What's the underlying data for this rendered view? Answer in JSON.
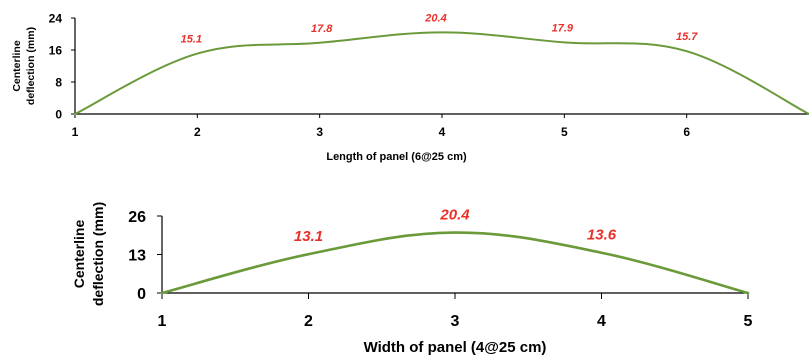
{
  "colors": {
    "series": "#6a9a3a",
    "data_label": "#e8312a",
    "axis": "#000000"
  },
  "chart_data": [
    {
      "type": "line",
      "x": [
        1,
        2,
        3,
        4,
        5,
        6,
        7
      ],
      "xticks": [
        "1",
        "2",
        "3",
        "4",
        "5",
        "6"
      ],
      "xlim": [
        1,
        7
      ],
      "ylim": [
        0,
        24
      ],
      "yticks": [
        0,
        8,
        16,
        24
      ],
      "values": [
        0,
        15.1,
        17.8,
        20.4,
        17.9,
        15.7,
        0
      ],
      "data_labels": [
        "",
        "15.1",
        "17.8",
        "20.4",
        "17.9",
        "15.7",
        ""
      ],
      "xlabel": "Length of panel (6@25 cm)",
      "ylabel": [
        "Centerline",
        "deflection (mm)"
      ],
      "smooth": true,
      "grid": false
    },
    {
      "type": "line",
      "x": [
        1,
        2,
        3,
        4,
        5
      ],
      "xticks": [
        "1",
        "2",
        "3",
        "4",
        "5"
      ],
      "xlim": [
        1,
        5
      ],
      "ylim": [
        0,
        26
      ],
      "yticks": [
        0,
        13,
        26
      ],
      "values": [
        0,
        13.1,
        20.4,
        13.6,
        0
      ],
      "data_labels": [
        "",
        "13.1",
        "20.4",
        "13.6",
        ""
      ],
      "xlabel": "Width of panel (4@25 cm)",
      "ylabel": [
        "Centerline",
        "deflection (mm)"
      ],
      "smooth": true,
      "grid": false
    }
  ]
}
